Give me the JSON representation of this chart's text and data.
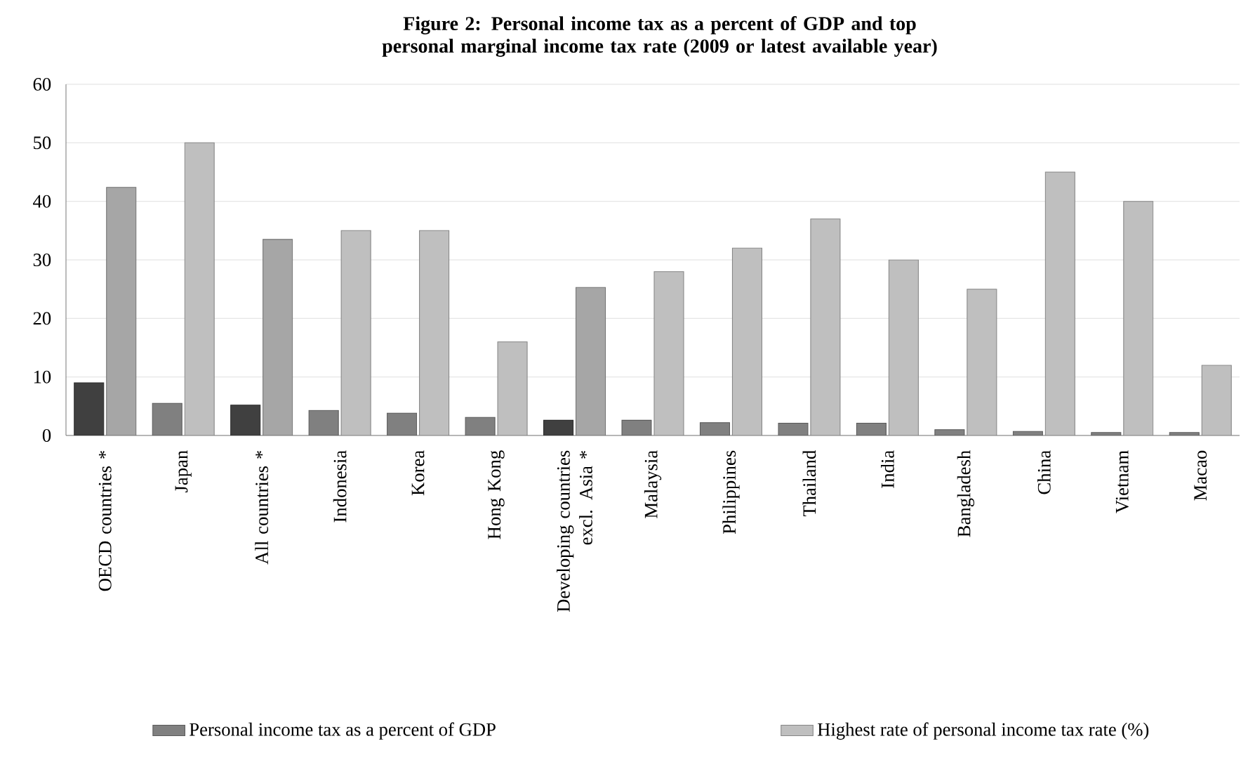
{
  "chart_data": {
    "type": "bar",
    "title": "Figure 2: Personal income tax as a percent of GDP and top personal marginal income tax rate (2009 or latest available year)",
    "categories": [
      "OECD countries *",
      "Japan",
      "All countries *",
      "Indonesia",
      "Korea",
      "Hong Kong",
      "Developing countries excl. Asia *",
      "Malaysia",
      "Philippines",
      "Thailand",
      "India",
      "Bangladesh",
      "China",
      "Vietnam",
      "Macao"
    ],
    "series": [
      {
        "name": "Personal income tax as a percent of GDP",
        "color": "#808080",
        "colors": [
          "#404040",
          "#808080",
          "#404040",
          "#808080",
          "#808080",
          "#808080",
          "#404040",
          "#808080",
          "#808080",
          "#808080",
          "#808080",
          "#808080",
          "#808080",
          "#808080",
          "#808080"
        ],
        "values": [
          9.0,
          5.5,
          5.2,
          4.3,
          3.8,
          3.1,
          2.6,
          2.6,
          2.2,
          2.1,
          2.1,
          1.0,
          0.7,
          0.5,
          0.5
        ]
      },
      {
        "name": "Highest rate of personal income tax rate (%)",
        "color": "#bfbfbf",
        "colors": [
          "#a6a6a6",
          "#bfbfbf",
          "#a6a6a6",
          "#bfbfbf",
          "#bfbfbf",
          "#bfbfbf",
          "#a6a6a6",
          "#bfbfbf",
          "#bfbfbf",
          "#bfbfbf",
          "#bfbfbf",
          "#bfbfbf",
          "#bfbfbf",
          "#bfbfbf",
          "#bfbfbf"
        ],
        "values": [
          42.4,
          50,
          33.5,
          35,
          35,
          16,
          25.3,
          28,
          32,
          37,
          30,
          25,
          45,
          40,
          12
        ]
      }
    ],
    "ylim": [
      0,
      60
    ],
    "yticks": [
      0,
      10,
      20,
      30,
      40,
      50,
      60
    ],
    "grid": "y",
    "legend": "bottom"
  }
}
